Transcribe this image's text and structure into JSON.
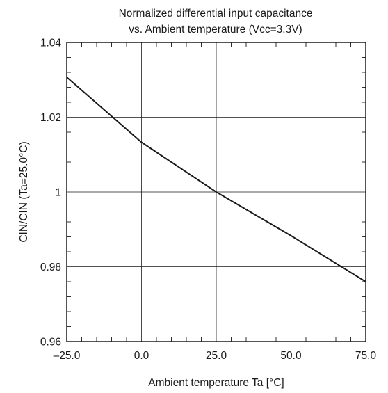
{
  "chart_data": {
    "type": "line",
    "title": "Normalized differential input capacitance",
    "subtitle": "vs. Ambient temperature (Vcc=3.3V)",
    "xlabel": "Ambient temperature Ta [°C]",
    "ylabel": "CIN/CIN (Ta=25.0°C)",
    "xlim": [
      -25.0,
      75.0
    ],
    "ylim": [
      0.96,
      1.04
    ],
    "xticks": [
      -25.0,
      0.0,
      25.0,
      50.0,
      75.0
    ],
    "xtick_labels": [
      "–25.0",
      "0.0",
      "25.0",
      "50.0",
      "75.0"
    ],
    "yticks": [
      0.96,
      0.98,
      1.0,
      1.02,
      1.04
    ],
    "ytick_labels": [
      "0.96",
      "0.98",
      "1",
      "1.02",
      "1.04"
    ],
    "grid": true,
    "series": [
      {
        "x": [
          -25.0,
          0.0,
          25.0,
          50.0,
          75.0
        ],
        "values": [
          1.0307,
          1.0133,
          1.0,
          0.9883,
          0.976
        ]
      }
    ],
    "line_color": "#1a1a1a"
  }
}
